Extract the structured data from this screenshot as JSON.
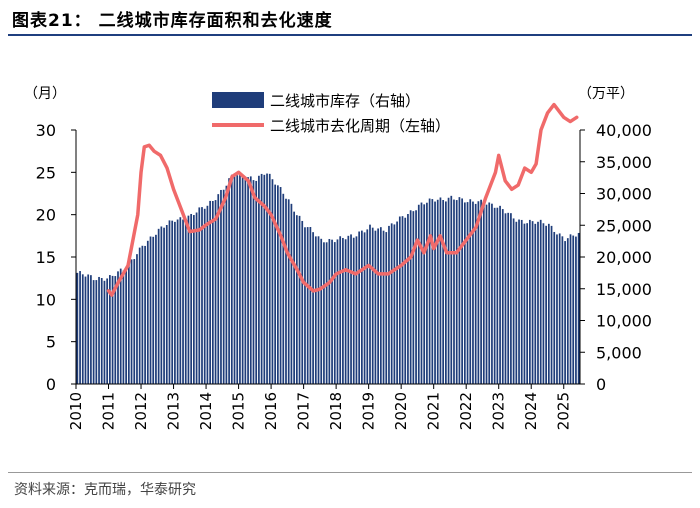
{
  "header": {
    "title": "图表21：  二线城市库存面积和去化速度"
  },
  "footer": {
    "source": "资料来源：克而瑞，华泰研究"
  },
  "colors": {
    "bar": "#1f3d7a",
    "line": "#f06a6a",
    "title_rule": "#1f3f7f"
  },
  "chart_data": {
    "type": "bar+line",
    "title": "二线城市库存面积和去化速度",
    "left_axis_unit": "（月）",
    "right_axis_unit": "（万平）",
    "left_ylim": [
      0,
      30
    ],
    "right_ylim": [
      0,
      40000
    ],
    "left_ticks": [
      "0",
      "5",
      "10",
      "15",
      "20",
      "25",
      "30"
    ],
    "right_ticks": [
      "0",
      "5,000",
      "10,000",
      "15,000",
      "20,000",
      "25,000",
      "30,000",
      "35,000",
      "40,000"
    ],
    "x_labels": [
      "2010",
      "2011",
      "2012",
      "2013",
      "2014",
      "2015",
      "2016",
      "2017",
      "2018",
      "2019",
      "2020",
      "2021",
      "2022",
      "2023",
      "2024",
      "2025"
    ],
    "x_range": [
      2010.0,
      2025.5
    ],
    "legend": [
      "二线城市库存（右轴）",
      "二线城市去化周期（左轴）"
    ],
    "bar_series": {
      "name": "二线城市库存（右轴）",
      "axis": "right",
      "start": 2010.0,
      "step_months": 1,
      "keys": [
        [
          2010.0,
          17500
        ],
        [
          2010.5,
          16500
        ],
        [
          2011.0,
          17000
        ],
        [
          2011.5,
          18000
        ],
        [
          2012.0,
          22000
        ],
        [
          2012.5,
          24000
        ],
        [
          2013.0,
          26000
        ],
        [
          2013.5,
          26500
        ],
        [
          2014.0,
          28000
        ],
        [
          2014.5,
          31000
        ],
        [
          2014.8,
          33000
        ],
        [
          2015.0,
          32500
        ],
        [
          2015.5,
          32500
        ],
        [
          2015.8,
          33500
        ],
        [
          2016.0,
          32000
        ],
        [
          2016.5,
          29000
        ],
        [
          2017.0,
          25000
        ],
        [
          2017.5,
          22500
        ],
        [
          2018.0,
          23000
        ],
        [
          2018.5,
          23000
        ],
        [
          2019.0,
          25000
        ],
        [
          2019.5,
          24000
        ],
        [
          2020.0,
          26500
        ],
        [
          2020.5,
          28000
        ],
        [
          2021.0,
          29000
        ],
        [
          2021.5,
          29500
        ],
        [
          2022.0,
          28500
        ],
        [
          2022.5,
          29000
        ],
        [
          2023.0,
          27500
        ],
        [
          2023.5,
          26000
        ],
        [
          2024.0,
          25500
        ],
        [
          2024.5,
          25000
        ],
        [
          2025.0,
          23000
        ],
        [
          2025.5,
          23500
        ]
      ]
    },
    "line_series": {
      "name": "二线城市去化周期（左轴）",
      "axis": "left",
      "points": [
        [
          2011.0,
          11.0
        ],
        [
          2011.1,
          10.5
        ],
        [
          2011.3,
          12.0
        ],
        [
          2011.6,
          14.0
        ],
        [
          2011.9,
          20.0
        ],
        [
          2012.0,
          25.0
        ],
        [
          2012.1,
          28.0
        ],
        [
          2012.25,
          28.2
        ],
        [
          2012.4,
          27.5
        ],
        [
          2012.6,
          27.0
        ],
        [
          2012.8,
          25.5
        ],
        [
          2013.0,
          23.0
        ],
        [
          2013.3,
          20.0
        ],
        [
          2013.5,
          18.0
        ],
        [
          2013.8,
          18.2
        ],
        [
          2014.0,
          18.8
        ],
        [
          2014.3,
          19.5
        ],
        [
          2014.6,
          22.0
        ],
        [
          2014.8,
          24.5
        ],
        [
          2015.0,
          25.0
        ],
        [
          2015.3,
          24.0
        ],
        [
          2015.5,
          22.0
        ],
        [
          2015.8,
          21.0
        ],
        [
          2016.0,
          20.0
        ],
        [
          2016.3,
          17.5
        ],
        [
          2016.5,
          15.5
        ],
        [
          2016.8,
          13.5
        ],
        [
          2017.0,
          12.0
        ],
        [
          2017.3,
          11.0
        ],
        [
          2017.5,
          11.2
        ],
        [
          2017.8,
          12.0
        ],
        [
          2018.0,
          13.0
        ],
        [
          2018.3,
          13.5
        ],
        [
          2018.6,
          13.0
        ],
        [
          2019.0,
          14.0
        ],
        [
          2019.3,
          13.0
        ],
        [
          2019.6,
          13.0
        ],
        [
          2020.0,
          14.0
        ],
        [
          2020.3,
          15.0
        ],
        [
          2020.5,
          17.0
        ],
        [
          2020.7,
          15.5
        ],
        [
          2020.9,
          17.5
        ],
        [
          2021.0,
          16.0
        ],
        [
          2021.2,
          17.5
        ],
        [
          2021.4,
          15.5
        ],
        [
          2021.7,
          15.5
        ],
        [
          2022.0,
          17.0
        ],
        [
          2022.3,
          18.5
        ],
        [
          2022.6,
          22.0
        ],
        [
          2022.9,
          25.0
        ],
        [
          2023.0,
          27.0
        ],
        [
          2023.2,
          24.0
        ],
        [
          2023.4,
          23.0
        ],
        [
          2023.6,
          23.5
        ],
        [
          2023.8,
          25.5
        ],
        [
          2024.0,
          25.0
        ],
        [
          2024.15,
          26.0
        ],
        [
          2024.3,
          30.0
        ],
        [
          2024.5,
          32.0
        ],
        [
          2024.7,
          33.0
        ],
        [
          2024.9,
          32.0
        ],
        [
          2025.0,
          31.5
        ],
        [
          2025.2,
          31.0
        ],
        [
          2025.4,
          31.5
        ]
      ]
    }
  }
}
